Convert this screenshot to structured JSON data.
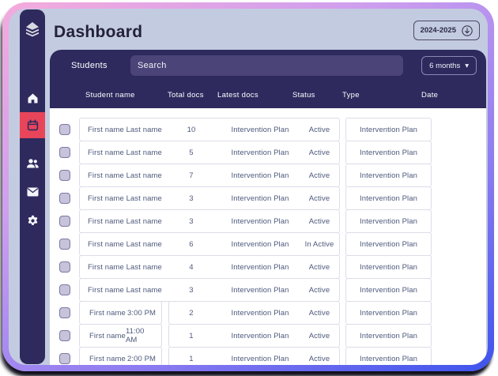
{
  "header": {
    "title": "Dashboard",
    "year_selector": "2024-2025"
  },
  "sidebar": {
    "logo": "layers-logo",
    "items": [
      {
        "id": "home",
        "icon": "home-icon",
        "active": false
      },
      {
        "id": "calendar",
        "icon": "calendar-icon",
        "active": true
      },
      {
        "id": "students",
        "icon": "users-icon",
        "active": false
      },
      {
        "id": "messages",
        "icon": "mail-icon",
        "active": false
      },
      {
        "id": "settings",
        "icon": "gear-icon",
        "active": false
      }
    ]
  },
  "toolbar": {
    "tab_label": "Students",
    "search_placeholder": "Search",
    "period_selector": "6 months",
    "period_caret": "▾"
  },
  "table": {
    "columns": [
      "Student name",
      "Total docs",
      "Latest docs",
      "Status",
      "Type",
      "Date"
    ],
    "rows": [
      {
        "name": "First name Last name",
        "time": "",
        "total": "10",
        "latest": "Intervention Plan",
        "status": "Active",
        "type": "Intervention Plan",
        "date": ""
      },
      {
        "name": "First name Last name",
        "time": "",
        "total": "5",
        "latest": "Intervention Plan",
        "status": "Active",
        "type": "Intervention Plan",
        "date": ""
      },
      {
        "name": "First name Last name",
        "time": "",
        "total": "7",
        "latest": "Intervention Plan",
        "status": "Active",
        "type": "Intervention Plan",
        "date": ""
      },
      {
        "name": "First name Last name",
        "time": "",
        "total": "3",
        "latest": "Intervention Plan",
        "status": "Active",
        "type": "Intervention Plan",
        "date": ""
      },
      {
        "name": "First name Last name",
        "time": "",
        "total": "3",
        "latest": "Intervention Plan",
        "status": "Active",
        "type": "Intervention Plan",
        "date": ""
      },
      {
        "name": "First name Last name",
        "time": "",
        "total": "6",
        "latest": "Intervention Plan",
        "status": "In Active",
        "type": "Intervention Plan",
        "date": ""
      },
      {
        "name": "First name Last name",
        "time": "",
        "total": "4",
        "latest": "Intervention Plan",
        "status": "Active",
        "type": "Intervention Plan",
        "date": ""
      },
      {
        "name": "First name Last name",
        "time": "",
        "total": "3",
        "latest": "Intervention Plan",
        "status": "Active",
        "type": "Intervention Plan",
        "date": ""
      },
      {
        "name": "First name",
        "time": "3:00 PM",
        "total": "2",
        "latest": "Intervention Plan",
        "status": "Active",
        "type": "Intervention Plan",
        "date": ""
      },
      {
        "name": "First name",
        "time": "11:00 AM",
        "total": "1",
        "latest": "Intervention Plan",
        "status": "Active",
        "type": "Intervention Plan",
        "date": ""
      },
      {
        "name": "First name",
        "time": "2:00 PM",
        "total": "1",
        "latest": "Intervention Plan",
        "status": "Active",
        "type": "Intervention Plan",
        "date": ""
      }
    ]
  },
  "colors": {
    "accent_red": "#E8455A",
    "navy": "#2E2A5E",
    "screen_background": "#C3CBE0",
    "row_text": "#4E5A7C",
    "frame_gradient": [
      "#F4ABDC",
      "#CF9FEE",
      "#8D7CF1",
      "#3E53EC"
    ]
  }
}
